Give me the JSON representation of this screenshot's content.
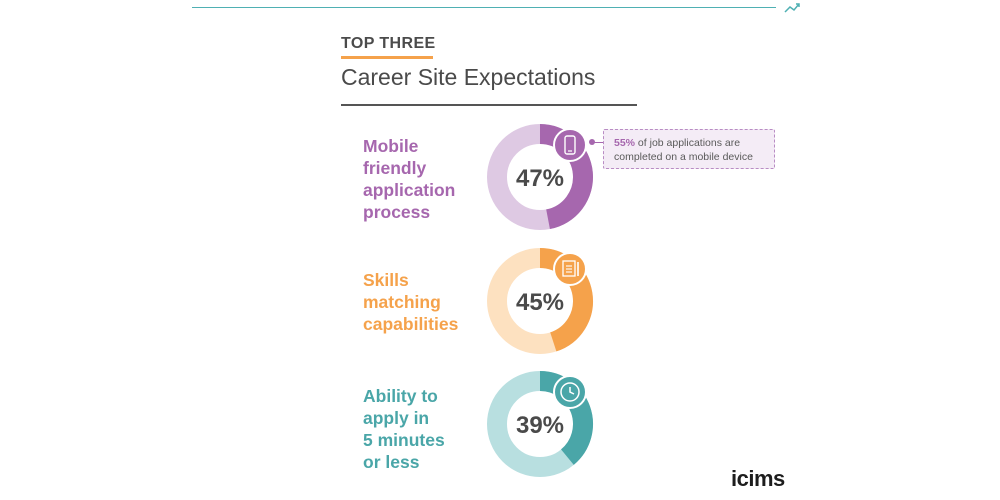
{
  "header": {
    "kicker": "TOP THREE",
    "title": "Career Site Expectations"
  },
  "colors": {
    "accent_teal": "#4fb0b3",
    "accent_orange": "#f5a24b",
    "purple": "#a667ae",
    "purple_light": "#dec9e3",
    "orange": "#f5a24b",
    "orange_light": "#fde1c0",
    "teal": "#4aa6a8",
    "teal_light": "#b8dfe0"
  },
  "items": [
    {
      "label_lines": [
        "Mobile",
        "friendly",
        "application",
        "process"
      ],
      "value_text": "47%",
      "icon": "smartphone-icon"
    },
    {
      "label_lines": [
        "Skills",
        "matching",
        "capabilities"
      ],
      "value_text": "45%",
      "icon": "resume-icon"
    },
    {
      "label_lines": [
        "Ability to",
        "apply in",
        "5 minutes",
        "or less"
      ],
      "value_text": "39%",
      "icon": "clock-icon"
    }
  ],
  "callout": {
    "highlight": "55%",
    "text": " of job applications are completed on a mobile device"
  },
  "logo": "icims",
  "chart_data": {
    "type": "pie",
    "title": "Career Site Expectations",
    "categories": [
      "Mobile friendly application process",
      "Skills matching capabilities",
      "Ability to apply in 5 minutes or less"
    ],
    "values": [
      47,
      45,
      39
    ],
    "unit": "%",
    "annotations": [
      "55% of job applications are completed on a mobile device"
    ]
  }
}
